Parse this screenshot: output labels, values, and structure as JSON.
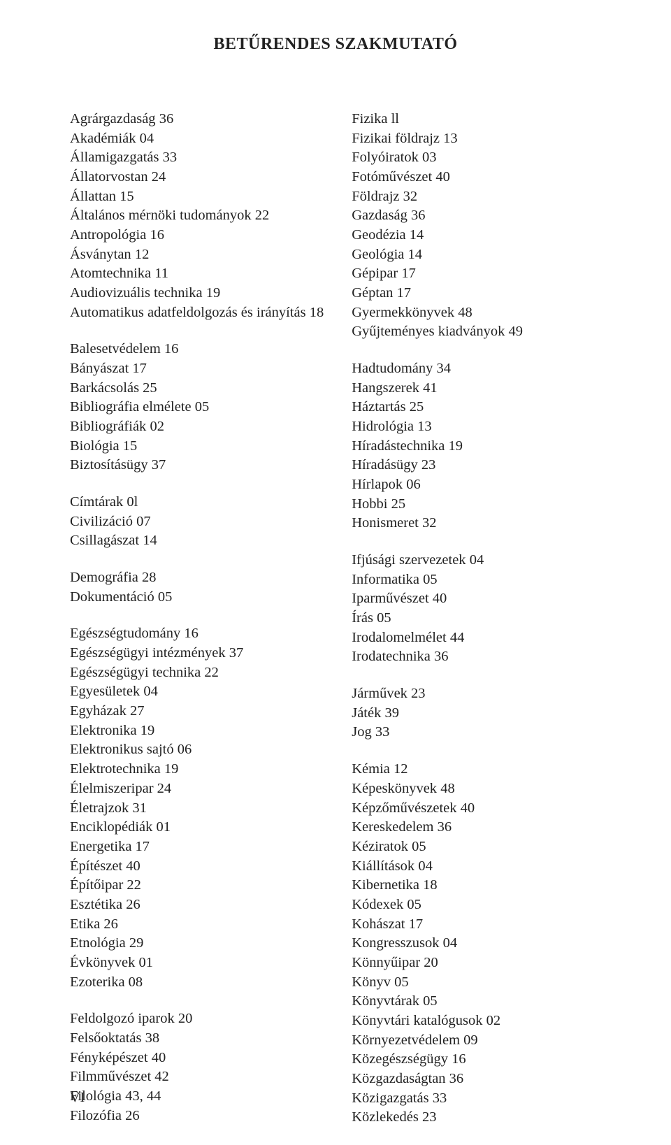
{
  "title": "BETŰRENDES SZAKMUTATÓ",
  "page_number": "VI",
  "left_column": [
    [
      {
        "term": "Agrárgazdaság",
        "num": "36"
      },
      {
        "term": "Akadémiák",
        "num": "04"
      },
      {
        "term": "Államigazgatás",
        "num": "33"
      },
      {
        "term": "Állatorvostan",
        "num": "24"
      },
      {
        "term": "Állattan",
        "num": "15"
      },
      {
        "term": "Általános mérnöki tudományok",
        "num": "22"
      },
      {
        "term": "Antropológia",
        "num": "16"
      },
      {
        "term": "Ásványtan",
        "num": "12"
      },
      {
        "term": "Atomtechnika",
        "num": "11"
      },
      {
        "term": "Audiovizuális technika",
        "num": "19"
      },
      {
        "term": "Automatikus adatfeldolgozás és irányítás",
        "num": "18"
      }
    ],
    [
      {
        "term": "Balesetvédelem",
        "num": "16"
      },
      {
        "term": "Bányászat",
        "num": "17"
      },
      {
        "term": "Barkácsolás",
        "num": "25"
      },
      {
        "term": "Bibliográfia elmélete",
        "num": "05"
      },
      {
        "term": "Bibliográfiák",
        "num": "02"
      },
      {
        "term": "Biológia",
        "num": "15"
      },
      {
        "term": "Biztosításügy",
        "num": "37"
      }
    ],
    [
      {
        "term": "Címtárak",
        "num": "0l"
      },
      {
        "term": "Civilizáció",
        "num": "07"
      },
      {
        "term": "Csillagászat",
        "num": "14"
      }
    ],
    [
      {
        "term": "Demográfia",
        "num": "28"
      },
      {
        "term": "Dokumentáció",
        "num": "05"
      }
    ],
    [
      {
        "term": "Egészségtudomány",
        "num": "16"
      },
      {
        "term": "Egészségügyi intézmények",
        "num": "37"
      },
      {
        "term": "Egészségügyi technika",
        "num": "22"
      },
      {
        "term": "Egyesületek",
        "num": "04"
      },
      {
        "term": "Egyházak",
        "num": "27"
      },
      {
        "term": "Elektronika",
        "num": "19"
      },
      {
        "term": "Elektronikus sajtó",
        "num": "06"
      },
      {
        "term": "Elektrotechnika",
        "num": "19"
      },
      {
        "term": "Élelmiszeripar",
        "num": "24"
      },
      {
        "term": "Életrajzok",
        "num": "31"
      },
      {
        "term": "Enciklopédiák",
        "num": "01"
      },
      {
        "term": "Energetika",
        "num": "17"
      },
      {
        "term": "Építészet",
        "num": "40"
      },
      {
        "term": "Építőipar",
        "num": "22"
      },
      {
        "term": "Esztétika",
        "num": "26"
      },
      {
        "term": "Etika",
        "num": "26"
      },
      {
        "term": "Etnológia",
        "num": "29"
      },
      {
        "term": "Évkönyvek",
        "num": "01"
      },
      {
        "term": "Ezoterika",
        "num": "08"
      }
    ],
    [
      {
        "term": "Feldolgozó iparok",
        "num": "20"
      },
      {
        "term": "Felsőoktatás",
        "num": "38"
      },
      {
        "term": "Fényképészet",
        "num": "40"
      },
      {
        "term": "Filmművészet",
        "num": "42"
      },
      {
        "term": "Filológia",
        "num": "43, 44"
      },
      {
        "term": "Filozófia",
        "num": "26"
      }
    ]
  ],
  "right_column": [
    [
      {
        "term": "Fizika",
        "num": "ll"
      },
      {
        "term": "Fizikai földrajz",
        "num": "13"
      },
      {
        "term": "Folyóiratok",
        "num": "03"
      },
      {
        "term": "Fotóművészet",
        "num": "40"
      },
      {
        "term": "Földrajz",
        "num": "32"
      },
      {
        "term": "Gazdaság",
        "num": "36"
      },
      {
        "term": "Geodézia",
        "num": "14"
      },
      {
        "term": "Geológia",
        "num": "14"
      },
      {
        "term": "Gépipar",
        "num": "17"
      },
      {
        "term": "Géptan",
        "num": "17"
      },
      {
        "term": "Gyermekkönyvek",
        "num": "48"
      },
      {
        "term": "Gyűjteményes kiadványok",
        "num": "49"
      }
    ],
    [
      {
        "term": "Hadtudomány",
        "num": "34"
      },
      {
        "term": "Hangszerek",
        "num": "41"
      },
      {
        "term": "Háztartás",
        "num": "25"
      },
      {
        "term": "Hidrológia",
        "num": "13"
      },
      {
        "term": "Híradástechnika",
        "num": "19"
      },
      {
        "term": "Híradásügy",
        "num": "23"
      },
      {
        "term": "Hírlapok",
        "num": "06"
      },
      {
        "term": "Hobbi",
        "num": "25"
      },
      {
        "term": "Honismeret",
        "num": "32"
      }
    ],
    [
      {
        "term": "Ifjúsági szervezetek",
        "num": "04"
      },
      {
        "term": "Informatika",
        "num": "05"
      },
      {
        "term": "Iparművészet",
        "num": "40"
      },
      {
        "term": "Írás",
        "num": "05"
      },
      {
        "term": "Irodalomelmélet",
        "num": "44"
      },
      {
        "term": "Irodatechnika",
        "num": "36"
      }
    ],
    [
      {
        "term": "Járművek",
        "num": "23"
      },
      {
        "term": "Játék",
        "num": "39"
      },
      {
        "term": "Jog",
        "num": "33"
      }
    ],
    [
      {
        "term": "Kémia",
        "num": "12"
      },
      {
        "term": "Képeskönyvek",
        "num": "48"
      },
      {
        "term": "Képzőművészetek",
        "num": "40"
      },
      {
        "term": "Kereskedelem",
        "num": "36"
      },
      {
        "term": "Kéziratok",
        "num": "05"
      },
      {
        "term": "Kiállítások",
        "num": "04"
      },
      {
        "term": "Kibernetika",
        "num": "18"
      },
      {
        "term": "Kódexek",
        "num": "05"
      },
      {
        "term": "Kohászat",
        "num": "17"
      },
      {
        "term": "Kongresszusok",
        "num": "04"
      },
      {
        "term": "Könnyűipar",
        "num": "20"
      },
      {
        "term": "Könyv",
        "num": "05"
      },
      {
        "term": "Könyvtárak",
        "num": "05"
      },
      {
        "term": "Könyvtári katalógusok",
        "num": "02"
      },
      {
        "term": "Környezetvédelem",
        "num": "09"
      },
      {
        "term": "Közegészségügy",
        "num": "16"
      },
      {
        "term": "Közgazdaságtan",
        "num": "36"
      },
      {
        "term": "Közigazgatás",
        "num": "33"
      },
      {
        "term": "Közlekedés",
        "num": "23"
      }
    ]
  ]
}
